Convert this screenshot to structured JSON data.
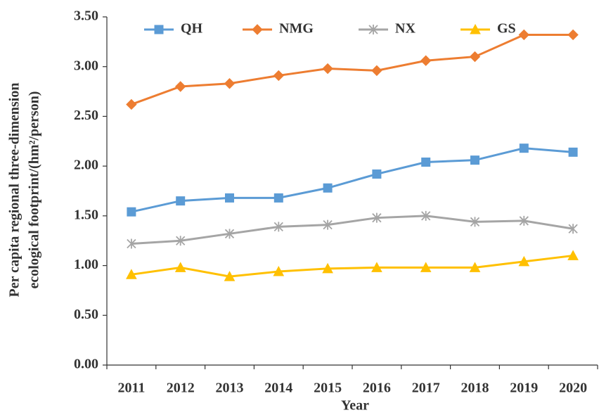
{
  "chart_data": {
    "type": "line",
    "ylabel": [
      "Per capita regional three-dimension",
      "ecological footprint/(hm²/person)"
    ],
    "xlabel": "Year",
    "categories": [
      "2011",
      "2012",
      "2013",
      "2014",
      "2015",
      "2016",
      "2017",
      "2018",
      "2019",
      "2020"
    ],
    "series": [
      {
        "name": "QH",
        "color": "#5b9bd5",
        "marker": "square",
        "values": [
          1.54,
          1.65,
          1.68,
          1.68,
          1.78,
          1.92,
          2.04,
          2.06,
          2.18,
          2.14
        ]
      },
      {
        "name": "NMG",
        "color": "#ed7d31",
        "marker": "diamond",
        "values": [
          2.62,
          2.8,
          2.83,
          2.91,
          2.98,
          2.96,
          3.06,
          3.1,
          3.32,
          3.32
        ]
      },
      {
        "name": "NX",
        "color": "#a5a5a5",
        "marker": "asterisk",
        "values": [
          1.22,
          1.25,
          1.32,
          1.39,
          1.41,
          1.48,
          1.5,
          1.44,
          1.45,
          1.37
        ]
      },
      {
        "name": "GS",
        "color": "#ffc000",
        "marker": "triangle",
        "values": [
          0.91,
          0.98,
          0.89,
          0.94,
          0.97,
          0.98,
          0.98,
          0.98,
          1.04,
          1.1
        ]
      }
    ],
    "ylim": [
      0,
      3.5
    ],
    "yticks": [
      {
        "value": 0,
        "label": "0.00"
      },
      {
        "value": 0.5,
        "label": "0.50"
      },
      {
        "value": 1,
        "label": "1.00"
      },
      {
        "value": 1.5,
        "label": "1.50"
      },
      {
        "value": 2,
        "label": "2.00"
      },
      {
        "value": 2.5,
        "label": "2.50"
      },
      {
        "value": 3,
        "label": "3.00"
      },
      {
        "value": 3.5,
        "label": "3.50"
      }
    ],
    "legend": "top"
  }
}
